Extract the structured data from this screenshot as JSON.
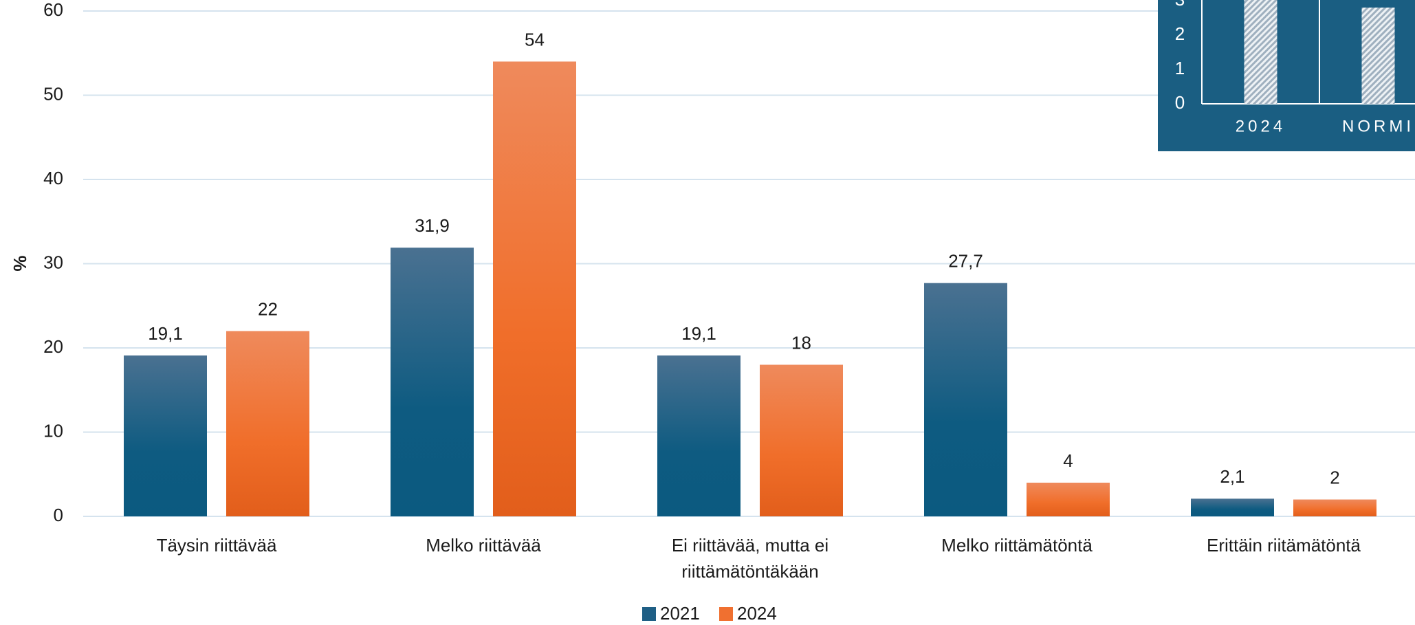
{
  "chart_data": [
    {
      "type": "bar",
      "y_label": "%",
      "categories": [
        "Täysin riittävää",
        "Melko riittävää",
        "Ei riittävää, mutta ei riittämätöntäkään",
        "Melko riittämätöntä",
        "Erittäin riitämätöntä"
      ],
      "series": [
        {
          "name": "2021",
          "color": "#1f5f85",
          "values": [
            19.1,
            31.9,
            19.1,
            27.7,
            2.1
          ],
          "value_labels": [
            "19,1",
            "31,9",
            "19,1",
            "27,7",
            "2,1"
          ]
        },
        {
          "name": "2024",
          "color": "#f07030",
          "values": [
            22,
            54,
            18,
            4,
            2
          ]
        }
      ],
      "ylim": [
        0,
        60
      ],
      "yticks": [
        0,
        10,
        20,
        30,
        40,
        50,
        60
      ],
      "grid": true,
      "legend": "bottom"
    },
    {
      "type": "bar",
      "categories": [
        "2024",
        "NORMI"
      ],
      "values": [
        3.6,
        2.8
      ],
      "ylim": [
        0,
        4
      ],
      "yticks": [
        0,
        1,
        2,
        3
      ],
      "background": "#1a5e82",
      "color": "#c9d3dc"
    }
  ]
}
